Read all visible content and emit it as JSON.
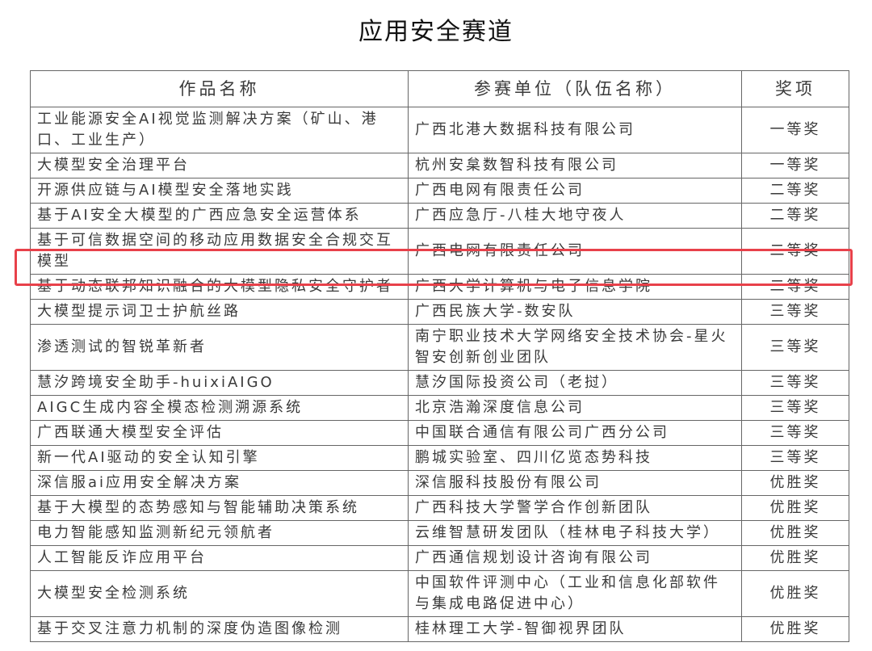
{
  "title": "应用安全赛道",
  "table": {
    "headers": [
      "作品名称",
      "参赛单位（队伍名称）",
      "奖项"
    ],
    "rows": [
      [
        "工业能源安全AI视觉监测解决方案（矿山、港口、工业生产）",
        "广西北港大数据科技有限公司",
        "一等奖"
      ],
      [
        "大模型安全治理平台",
        "杭州安枲数智科技有限公司",
        "一等奖"
      ],
      [
        "开源供应链与AI模型安全落地实践",
        "广西电网有限责任公司",
        "二等奖"
      ],
      [
        "基于AI安全大模型的广西应急安全运营体系",
        "广西应急厅-八桂大地守夜人",
        "二等奖"
      ],
      [
        "基于可信数据空间的移动应用数据安全合规交互模型",
        "广西电网有限责任公司",
        "二等奖"
      ],
      [
        "基于动态联邦知识融合的大模型隐私安全守护者",
        "广西大学计算机与电子信息学院",
        "二等奖"
      ],
      [
        "大模型提示词卫士护航丝路",
        "广西民族大学-数安队",
        "三等奖"
      ],
      [
        "渗透测试的智锐革新者",
        "南宁职业技术大学网络安全技术协会-星火智安创新创业团队",
        "三等奖"
      ],
      [
        "慧汐跨境安全助手-huixiAIGO",
        "慧汐国际投资公司（老挝）",
        "三等奖"
      ],
      [
        "AIGC生成内容全模态检测溯源系统",
        "北京浩瀚深度信息公司",
        "三等奖"
      ],
      [
        "广西联通大模型安全评估",
        "中国联合通信有限公司广西分公司",
        "三等奖"
      ],
      [
        "新一代AI驱动的安全认知引擎",
        "鹏城实验室、四川亿览态势科技",
        "三等奖"
      ],
      [
        "深信服ai应用安全解决方案",
        "深信服科技股份有限公司",
        "优胜奖"
      ],
      [
        "基于大模型的态势感知与智能辅助决策系统",
        "广西科技大学警学合作创新团队",
        "优胜奖"
      ],
      [
        "电力智能感知监测新纪元领航者",
        "云维智慧研发团队（桂林电子科技大学）",
        "优胜奖"
      ],
      [
        "人工智能反诈应用平台",
        "广西通信规划设计咨询有限公司",
        "优胜奖"
      ],
      [
        "大模型安全检测系统",
        "中国软件评测中心（工业和信息化部软件与集成电路促进中心）",
        "优胜奖"
      ],
      [
        "基于交叉注意力机制的深度伪造图像检测",
        "桂林理工大学-智御视界团队",
        "优胜奖"
      ]
    ],
    "highlighted_row": 5
  },
  "colors": {
    "highlight": "#e8414a",
    "border": "#666666"
  }
}
